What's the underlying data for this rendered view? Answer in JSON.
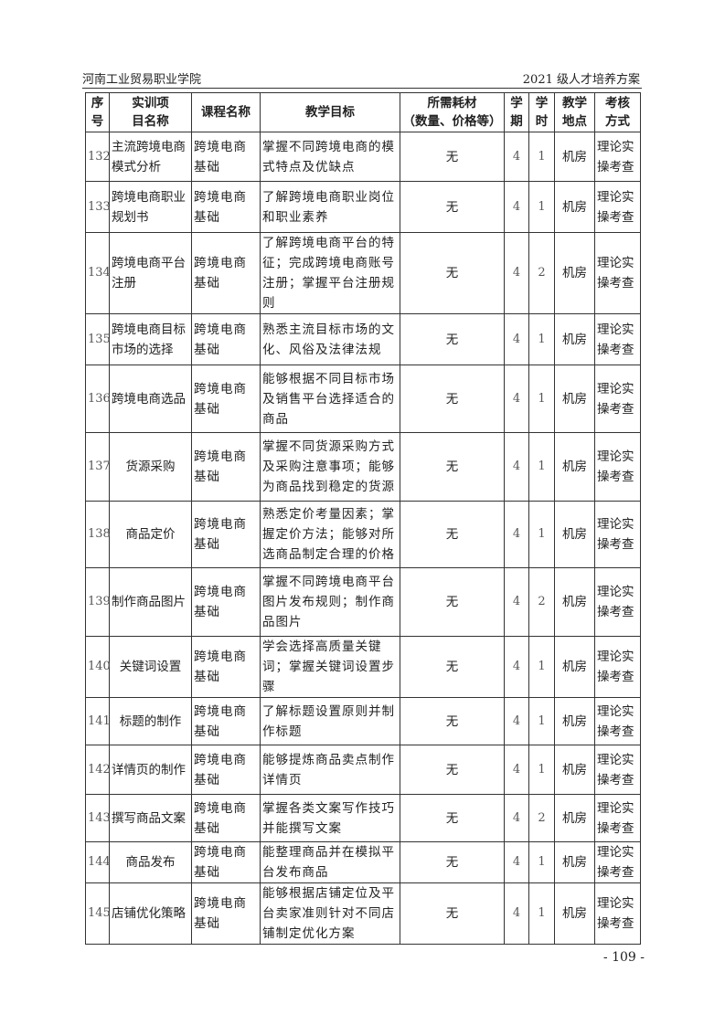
{
  "header": {
    "left": "河南工业贸易职业学院",
    "right": "2021 级人才培养方案"
  },
  "table": {
    "columns": [
      "序号",
      "实训项目名称",
      "课程名称",
      "教学目标",
      "所需耗材（数量、价格等）",
      "学期",
      "学时",
      "教学地点",
      "考核方式"
    ],
    "columns_display": [
      [
        "序",
        "号"
      ],
      [
        "实训项",
        "目名称"
      ],
      [
        "课程名称"
      ],
      [
        "教学目标"
      ],
      [
        "所需耗材",
        "（数量、价格等）"
      ],
      [
        "学",
        "期"
      ],
      [
        "学",
        "时"
      ],
      [
        "教学",
        "地点"
      ],
      [
        "考核",
        "方式"
      ]
    ],
    "rows": [
      {
        "no": "132",
        "project": "主流跨境电商模式分析",
        "course": "跨境电商基础",
        "goal": "掌握不同跨境电商的模式特点及优缺点",
        "materials": "无",
        "term": "4",
        "hours": "1",
        "place": "机房",
        "assess": "理论实操考查"
      },
      {
        "no": "133",
        "project": "跨境电商职业规划书",
        "course": "跨境电商基础",
        "goal": "了解跨境电商职业岗位和职业素养",
        "materials": "无",
        "term": "4",
        "hours": "1",
        "place": "机房",
        "assess": "理论实操考查"
      },
      {
        "no": "134",
        "project": "跨境电商平台注册",
        "course": "跨境电商基础",
        "goal": "了解跨境电商平台的特征；完成跨境电商账号注册；掌握平台注册规则",
        "materials": "无",
        "term": "4",
        "hours": "2",
        "place": "机房",
        "assess": "理论实操考查"
      },
      {
        "no": "135",
        "project": "跨境电商目标市场的选择",
        "course": "跨境电商基础",
        "goal": "熟悉主流目标市场的文化、风俗及法律法规",
        "materials": "无",
        "term": "4",
        "hours": "1",
        "place": "机房",
        "assess": "理论实操考查"
      },
      {
        "no": "136",
        "project": "跨境电商选品",
        "course": "跨境电商基础",
        "goal": "能够根据不同目标市场及销售平台选择适合的商品",
        "materials": "无",
        "term": "4",
        "hours": "1",
        "place": "机房",
        "assess": "理论实操考查"
      },
      {
        "no": "137",
        "project": "货源采购",
        "course": "跨境电商基础",
        "goal": "掌握不同货源采购方式及采购注意事项；能够为商品找到稳定的货源",
        "materials": "无",
        "term": "4",
        "hours": "1",
        "place": "机房",
        "assess": "理论实操考查"
      },
      {
        "no": "138",
        "project": "商品定价",
        "course": "跨境电商基础",
        "goal": "熟悉定价考量因素；掌握定价方法；能够对所选商品制定合理的价格",
        "materials": "无",
        "term": "4",
        "hours": "1",
        "place": "机房",
        "assess": "理论实操考查"
      },
      {
        "no": "139",
        "project": "制作商品图片",
        "course": "跨境电商基础",
        "goal": "掌握不同跨境电商平台图片发布规则；制作商品图片",
        "materials": "无",
        "term": "4",
        "hours": "2",
        "place": "机房",
        "assess": "理论实操考查"
      },
      {
        "no": "140",
        "project": "关键词设置",
        "course": "跨境电商基础",
        "goal": "学会选择高质量关键词；掌握关键词设置步骤",
        "materials": "无",
        "term": "4",
        "hours": "1",
        "place": "机房",
        "assess": "理论实操考查"
      },
      {
        "no": "141",
        "project": "标题的制作",
        "course": "跨境电商基础",
        "goal": "了解标题设置原则并制作标题",
        "materials": "无",
        "term": "4",
        "hours": "1",
        "place": "机房",
        "assess": "理论实操考查"
      },
      {
        "no": "142",
        "project": "详情页的制作",
        "course": "跨境电商基础",
        "goal": "能够提炼商品卖点制作详情页",
        "materials": "无",
        "term": "4",
        "hours": "1",
        "place": "机房",
        "assess": "理论实操考查"
      },
      {
        "no": "143",
        "project": "撰写商品文案",
        "course": "跨境电商基础",
        "goal": "掌握各类文案写作技巧并能撰写文案",
        "materials": "无",
        "term": "4",
        "hours": "2",
        "place": "机房",
        "assess": "理论实操考查"
      },
      {
        "no": "144",
        "project": "商品发布",
        "course": "跨境电商基础",
        "goal": "能整理商品并在模拟平台发布商品",
        "materials": "无",
        "term": "4",
        "hours": "1",
        "place": "机房",
        "assess": "理论实操考查"
      },
      {
        "no": "145",
        "project": "店铺优化策略",
        "course": "跨境电商基础",
        "goal": "能够根据店铺定位及平台卖家准则针对不同店铺制定优化方案",
        "materials": "无",
        "term": "4",
        "hours": "1",
        "place": "机房",
        "assess": "理论实操考查"
      }
    ]
  },
  "footer": {
    "page": "- 109 -"
  }
}
